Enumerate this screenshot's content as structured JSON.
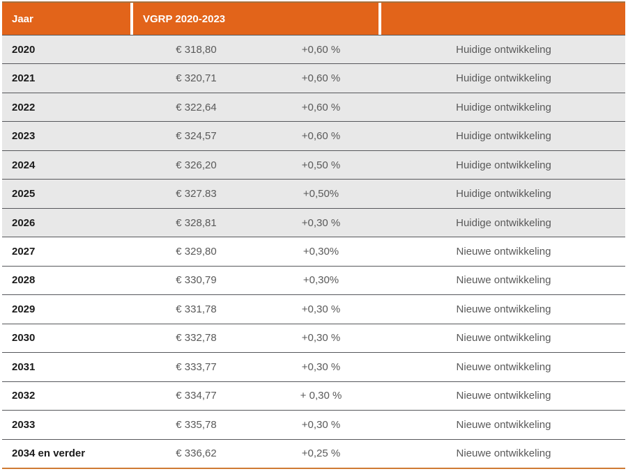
{
  "header": {
    "col_year": "Jaar",
    "col_vgrp": "VGRP 2020-2023",
    "col_empty": ""
  },
  "colors": {
    "header_bg": "#E2641A",
    "header_text": "#FFFFFF",
    "row_alt_bg": "#E8E8E8",
    "row_bg": "#FFFFFF",
    "separator_line": "#55565A",
    "header_top_line": "#A5713F",
    "bottom_accent_line": "#CE7A33",
    "year_text": "#1A1A1A",
    "value_text": "#595959"
  },
  "rows": [
    {
      "year": "2020",
      "amount": "€ 318,80",
      "change": "+0,60 %",
      "status": "Huidige ontwikkeling",
      "highlight": true
    },
    {
      "year": "2021",
      "amount": "€ 320,71",
      "change": "+0,60 %",
      "status": "Huidige ontwikkeling",
      "highlight": true
    },
    {
      "year": "2022",
      "amount": "€ 322,64",
      "change": "+0,60 %",
      "status": "Huidige ontwikkeling",
      "highlight": true
    },
    {
      "year": "2023",
      "amount": "€ 324,57",
      "change": "+0,60 %",
      "status": "Huidige ontwikkeling",
      "highlight": true
    },
    {
      "year": "2024",
      "amount": "€ 326,20",
      "change": "+0,50 %",
      "status": "Huidige ontwikkeling",
      "highlight": true
    },
    {
      "year": "2025",
      "amount": "€ 327.83",
      "change": "+0,50%",
      "status": "Huidige ontwikkeling",
      "highlight": true
    },
    {
      "year": "2026",
      "amount": "€ 328,81",
      "change": "+0,30 %",
      "status": "Huidige ontwikkeling",
      "highlight": true
    },
    {
      "year": "2027",
      "amount": "€ 329,80",
      "change": "+0,30%",
      "status": "Nieuwe ontwikkeling",
      "highlight": false
    },
    {
      "year": "2028",
      "amount": "€ 330,79",
      "change": "+0,30%",
      "status": "Nieuwe ontwikkeling",
      "highlight": false
    },
    {
      "year": "2029",
      "amount": "€ 331,78",
      "change": "+0,30 %",
      "status": "Nieuwe ontwikkeling",
      "highlight": false
    },
    {
      "year": "2030",
      "amount": "€ 332,78",
      "change": "+0,30 %",
      "status": "Nieuwe ontwikkeling",
      "highlight": false
    },
    {
      "year": "2031",
      "amount": "€ 333,77",
      "change": "+0,30 %",
      "status": "Nieuwe ontwikkeling",
      "highlight": false
    },
    {
      "year": "2032",
      "amount": "€ 334,77",
      "change": "+ 0,30 %",
      "status": "Nieuwe ontwikkeling",
      "highlight": false
    },
    {
      "year": "2033",
      "amount": "€ 335,78",
      "change": "+0,30 %",
      "status": "Nieuwe ontwikkeling",
      "highlight": false
    },
    {
      "year": "2034 en verder",
      "amount": "€ 336,62",
      "change": "+0,25 %",
      "status": "Nieuwe ontwikkeling",
      "highlight": false
    }
  ]
}
